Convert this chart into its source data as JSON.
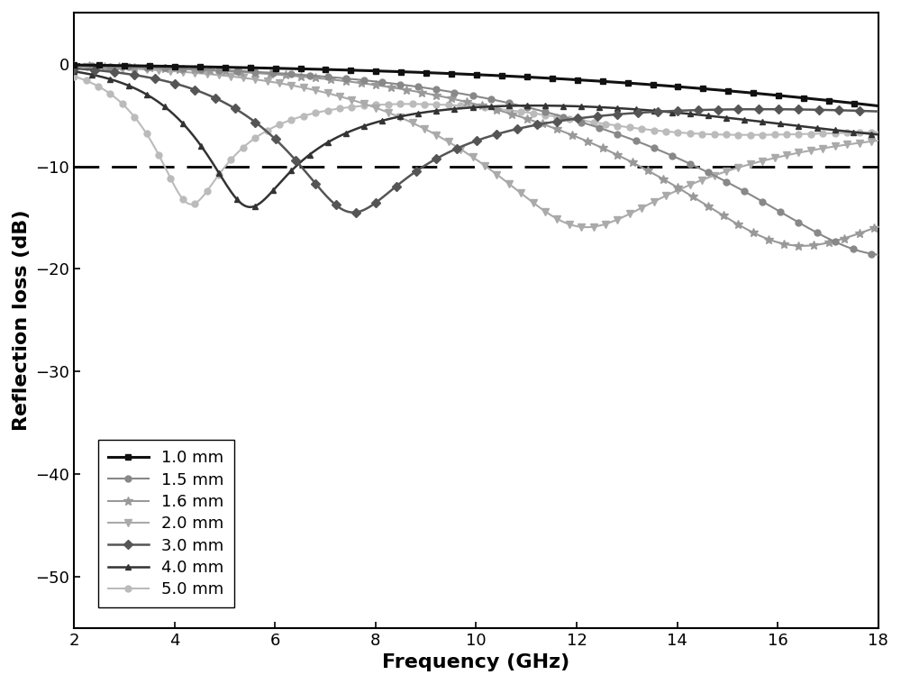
{
  "title": "",
  "xlabel": "Frequency (GHz)",
  "ylabel": "Reflection loss (dB)",
  "xlim": [
    2,
    18
  ],
  "ylim": [
    -55,
    5
  ],
  "yticks": [
    0,
    -10,
    -20,
    -30,
    -40,
    -50
  ],
  "xticks": [
    2,
    4,
    6,
    8,
    10,
    12,
    14,
    16,
    18
  ],
  "dashed_line_y": -10,
  "series": [
    {
      "label": "1.0 mm",
      "color": "#111111",
      "marker": "s",
      "markersize": 5,
      "linewidth": 2.2,
      "zorder": 10,
      "markevery": 25
    },
    {
      "label": "1.5 mm",
      "color": "#888888",
      "marker": "o",
      "markersize": 5,
      "linewidth": 1.5,
      "zorder": 6,
      "markevery": 18
    },
    {
      "label": "1.6 mm",
      "color": "#999999",
      "marker": "*",
      "markersize": 7,
      "linewidth": 1.5,
      "zorder": 5,
      "markevery": 15
    },
    {
      "label": "2.0 mm",
      "color": "#aaaaaa",
      "marker": "v",
      "markersize": 6,
      "linewidth": 1.5,
      "zorder": 4,
      "markevery": 12
    },
    {
      "label": "3.0 mm",
      "color": "#555555",
      "marker": "D",
      "markersize": 5,
      "linewidth": 1.8,
      "zorder": 9,
      "markevery": 20
    },
    {
      "label": "4.0 mm",
      "color": "#333333",
      "marker": "^",
      "markersize": 5,
      "linewidth": 1.8,
      "zorder": 8,
      "markevery": 18
    },
    {
      "label": "5.0 mm",
      "color": "#bbbbbb",
      "marker": "o",
      "markersize": 5,
      "linewidth": 1.5,
      "zorder": 3,
      "markevery": 12
    }
  ],
  "legend_fontsize": 13,
  "axis_label_fontsize": 16,
  "tick_fontsize": 13
}
